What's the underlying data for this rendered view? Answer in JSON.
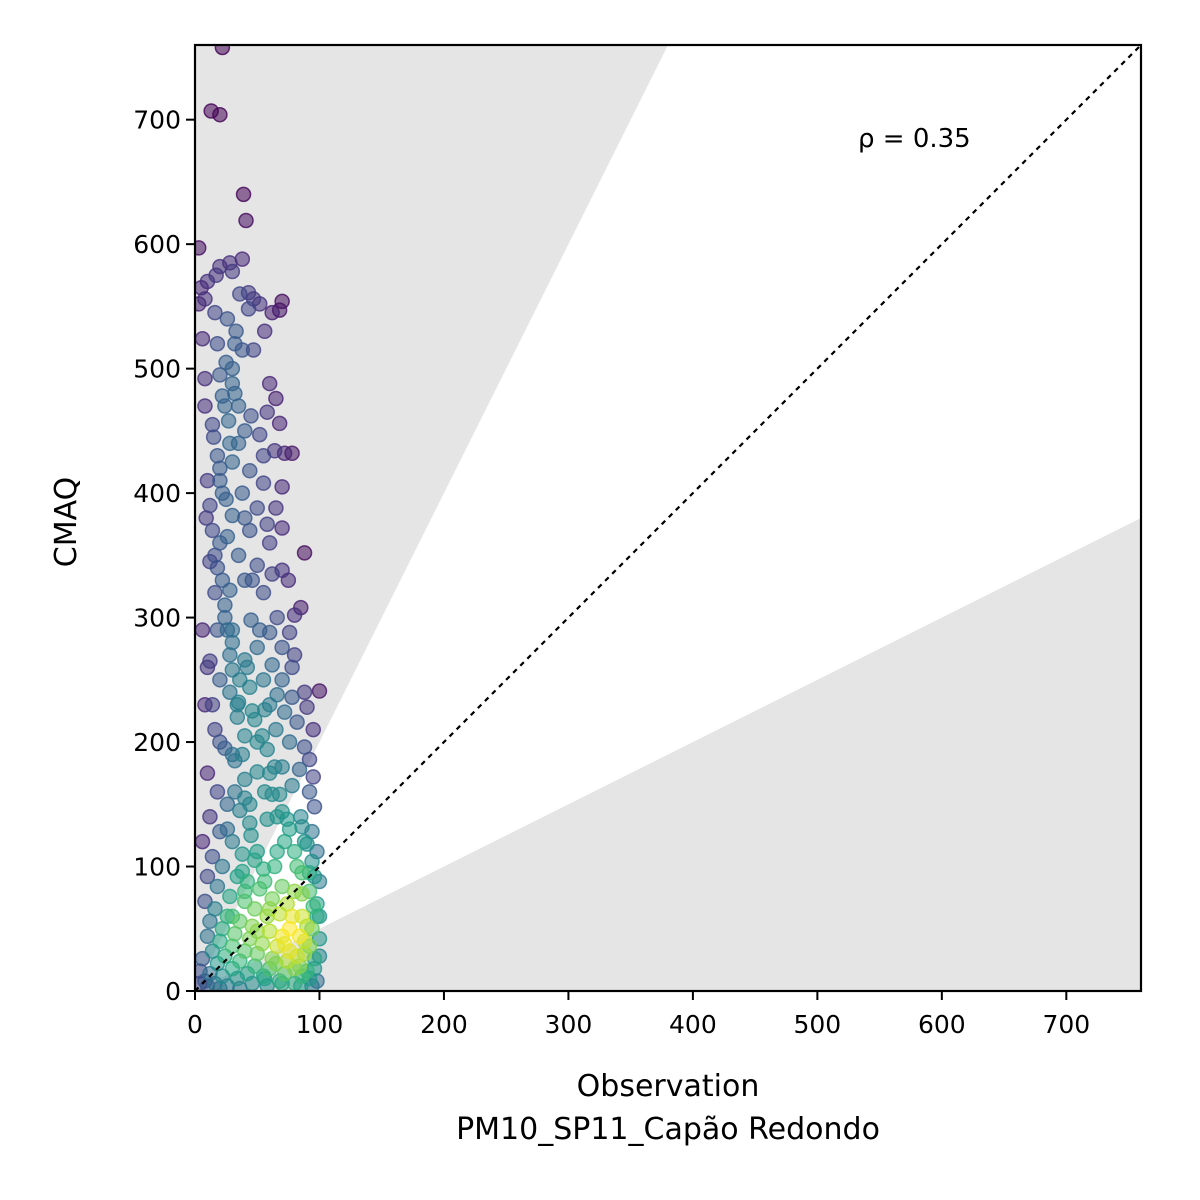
{
  "chart_data": {
    "type": "scatter",
    "title": "",
    "xlabel": "Observation",
    "xlabel_line2": "PM10_SP11_Capão Redondo",
    "ylabel": "CMAQ",
    "xlim": [
      0,
      760
    ],
    "ylim": [
      0,
      760
    ],
    "xticks": [
      0,
      100,
      200,
      300,
      400,
      500,
      600,
      700
    ],
    "yticks": [
      0,
      100,
      200,
      300,
      400,
      500,
      600,
      700
    ],
    "annotation": "ρ = 0.35",
    "identity_line": true,
    "shaded_region_slopes": {
      "upper": 2,
      "lower": 0.5
    },
    "shade_color": "#e5e5e5",
    "colormap": "viridis",
    "point_alpha": 0.55,
    "grid": false,
    "legend": "none",
    "points": [
      [
        22,
        758
      ],
      [
        13,
        707
      ],
      [
        20,
        704
      ],
      [
        39,
        640
      ],
      [
        41,
        619
      ],
      [
        3,
        597
      ],
      [
        38,
        588
      ],
      [
        28,
        585
      ],
      [
        20,
        582
      ],
      [
        17,
        575
      ],
      [
        10,
        570
      ],
      [
        30,
        578
      ],
      [
        5,
        565
      ],
      [
        8,
        556
      ],
      [
        43,
        561
      ],
      [
        47,
        556
      ],
      [
        70,
        554
      ],
      [
        68,
        547
      ],
      [
        62,
        545
      ],
      [
        52,
        552
      ],
      [
        3,
        552
      ],
      [
        16,
        545
      ],
      [
        43,
        548
      ],
      [
        33,
        530
      ],
      [
        56,
        530
      ],
      [
        32,
        520
      ],
      [
        6,
        524
      ],
      [
        38,
        515
      ],
      [
        47,
        515
      ],
      [
        25,
        505
      ],
      [
        20,
        495
      ],
      [
        30,
        488
      ],
      [
        8,
        492
      ],
      [
        60,
        488
      ],
      [
        65,
        476
      ],
      [
        35,
        470
      ],
      [
        22,
        478
      ],
      [
        45,
        462
      ],
      [
        58,
        465
      ],
      [
        68,
        456
      ],
      [
        27,
        458
      ],
      [
        40,
        450
      ],
      [
        52,
        447
      ],
      [
        15,
        445
      ],
      [
        35,
        440
      ],
      [
        55,
        430
      ],
      [
        64,
        434
      ],
      [
        72,
        432
      ],
      [
        78,
        432
      ],
      [
        30,
        425
      ],
      [
        44,
        418
      ],
      [
        20,
        420
      ],
      [
        10,
        410
      ],
      [
        55,
        408
      ],
      [
        70,
        405
      ],
      [
        38,
        400
      ],
      [
        25,
        395
      ],
      [
        50,
        388
      ],
      [
        65,
        388
      ],
      [
        30,
        382
      ],
      [
        58,
        375
      ],
      [
        44,
        370
      ],
      [
        70,
        372
      ],
      [
        60,
        360
      ],
      [
        20,
        360
      ],
      [
        35,
        350
      ],
      [
        88,
        352
      ],
      [
        50,
        342
      ],
      [
        70,
        338
      ],
      [
        62,
        335
      ],
      [
        40,
        330
      ],
      [
        75,
        330
      ],
      [
        28,
        322
      ],
      [
        55,
        320
      ],
      [
        85,
        308
      ],
      [
        80,
        302
      ],
      [
        66,
        300
      ],
      [
        45,
        298
      ],
      [
        30,
        290
      ],
      [
        60,
        288
      ],
      [
        76,
        288
      ],
      [
        50,
        276
      ],
      [
        70,
        276
      ],
      [
        80,
        270
      ],
      [
        40,
        266
      ],
      [
        62,
        262
      ],
      [
        78,
        260
      ],
      [
        30,
        258
      ],
      [
        55,
        250
      ],
      [
        70,
        250
      ],
      [
        44,
        244
      ],
      [
        88,
        240
      ],
      [
        100,
        241
      ],
      [
        66,
        238
      ],
      [
        78,
        236
      ],
      [
        35,
        232
      ],
      [
        56,
        226
      ],
      [
        90,
        228
      ],
      [
        72,
        224
      ],
      [
        48,
        218
      ],
      [
        82,
        216
      ],
      [
        95,
        210
      ],
      [
        65,
        210
      ],
      [
        40,
        205
      ],
      [
        76,
        200
      ],
      [
        88,
        196
      ],
      [
        58,
        194
      ],
      [
        92,
        186
      ],
      [
        30,
        190
      ],
      [
        70,
        180
      ],
      [
        84,
        178
      ],
      [
        95,
        172
      ],
      [
        50,
        176
      ],
      [
        78,
        165
      ],
      [
        92,
        160
      ],
      [
        62,
        158
      ],
      [
        40,
        155
      ],
      [
        96,
        148
      ],
      [
        70,
        144
      ],
      [
        85,
        140
      ],
      [
        58,
        138
      ],
      [
        94,
        128
      ],
      [
        76,
        130
      ],
      [
        88,
        120
      ],
      [
        45,
        125
      ],
      [
        98,
        112
      ],
      [
        66,
        112
      ],
      [
        82,
        100
      ],
      [
        92,
        95
      ],
      [
        55,
        98
      ],
      [
        100,
        88
      ],
      [
        70,
        84
      ],
      [
        86,
        78
      ],
      [
        40,
        80
      ],
      [
        95,
        68
      ],
      [
        60,
        66
      ],
      [
        78,
        60
      ],
      [
        90,
        52
      ],
      [
        100,
        42
      ],
      [
        50,
        48
      ],
      [
        72,
        38
      ],
      [
        88,
        30
      ],
      [
        65,
        22
      ],
      [
        100,
        28
      ],
      [
        80,
        18
      ],
      [
        92,
        10
      ],
      [
        55,
        12
      ],
      [
        85,
        4
      ],
      [
        70,
        6
      ],
      [
        8,
        470
      ],
      [
        14,
        455
      ],
      [
        18,
        430
      ],
      [
        22,
        400
      ],
      [
        9,
        380
      ],
      [
        26,
        365
      ],
      [
        12,
        345
      ],
      [
        16,
        320
      ],
      [
        24,
        300
      ],
      [
        30,
        280
      ],
      [
        6,
        290
      ],
      [
        12,
        265
      ],
      [
        20,
        250
      ],
      [
        28,
        240
      ],
      [
        34,
        220
      ],
      [
        8,
        230
      ],
      [
        16,
        210
      ],
      [
        24,
        195
      ],
      [
        32,
        185
      ],
      [
        40,
        170
      ],
      [
        10,
        175
      ],
      [
        18,
        160
      ],
      [
        26,
        150
      ],
      [
        36,
        145
      ],
      [
        44,
        135
      ],
      [
        12,
        140
      ],
      [
        20,
        128
      ],
      [
        30,
        120
      ],
      [
        38,
        110
      ],
      [
        48,
        105
      ],
      [
        6,
        120
      ],
      [
        14,
        108
      ],
      [
        22,
        100
      ],
      [
        34,
        92
      ],
      [
        42,
        88
      ],
      [
        52,
        82
      ],
      [
        10,
        92
      ],
      [
        18,
        84
      ],
      [
        28,
        76
      ],
      [
        40,
        72
      ],
      [
        48,
        66
      ],
      [
        58,
        60
      ],
      [
        8,
        72
      ],
      [
        16,
        66
      ],
      [
        26,
        60
      ],
      [
        36,
        56
      ],
      [
        46,
        52
      ],
      [
        60,
        48
      ],
      [
        70,
        44
      ],
      [
        12,
        56
      ],
      [
        22,
        50
      ],
      [
        32,
        46
      ],
      [
        44,
        42
      ],
      [
        54,
        38
      ],
      [
        66,
        36
      ],
      [
        76,
        32
      ],
      [
        10,
        44
      ],
      [
        20,
        40
      ],
      [
        30,
        36
      ],
      [
        40,
        32
      ],
      [
        50,
        30
      ],
      [
        62,
        26
      ],
      [
        74,
        24
      ],
      [
        84,
        20
      ],
      [
        96,
        18
      ],
      [
        14,
        32
      ],
      [
        24,
        28
      ],
      [
        36,
        24
      ],
      [
        48,
        20
      ],
      [
        60,
        18
      ],
      [
        72,
        14
      ],
      [
        86,
        12
      ],
      [
        98,
        8
      ],
      [
        6,
        26
      ],
      [
        18,
        22
      ],
      [
        30,
        18
      ],
      [
        42,
        14
      ],
      [
        56,
        10
      ],
      [
        68,
        8
      ],
      [
        80,
        6
      ],
      [
        94,
        4
      ],
      [
        4,
        16
      ],
      [
        12,
        14
      ],
      [
        22,
        12
      ],
      [
        34,
        10
      ],
      [
        46,
        6
      ],
      [
        58,
        4
      ],
      [
        8,
        8
      ],
      [
        16,
        6
      ],
      [
        26,
        4
      ],
      [
        36,
        2
      ],
      [
        4,
        6
      ],
      [
        10,
        4
      ],
      [
        20,
        2
      ],
      [
        30,
        60
      ],
      [
        38,
        96
      ],
      [
        26,
        130
      ],
      [
        32,
        160
      ],
      [
        20,
        200
      ],
      [
        14,
        230
      ],
      [
        10,
        260
      ],
      [
        18,
        290
      ],
      [
        22,
        330
      ],
      [
        14,
        370
      ],
      [
        20,
        410
      ],
      [
        28,
        440
      ],
      [
        24,
        470
      ],
      [
        30,
        500
      ],
      [
        18,
        520
      ],
      [
        26,
        540
      ],
      [
        36,
        560
      ],
      [
        32,
        480
      ],
      [
        40,
        380
      ],
      [
        46,
        330
      ],
      [
        52,
        290
      ],
      [
        42,
        260
      ],
      [
        60,
        230
      ],
      [
        50,
        200
      ],
      [
        64,
        180
      ],
      [
        56,
        160
      ],
      [
        66,
        140
      ],
      [
        72,
        120
      ],
      [
        64,
        100
      ],
      [
        80,
        80
      ],
      [
        74,
        70
      ],
      [
        86,
        60
      ],
      [
        84,
        44
      ],
      [
        92,
        36
      ],
      [
        96,
        26
      ],
      [
        90,
        16
      ],
      [
        82,
        28
      ],
      [
        76,
        50
      ],
      [
        68,
        62
      ],
      [
        62,
        74
      ],
      [
        56,
        88
      ],
      [
        50,
        112
      ],
      [
        44,
        150
      ],
      [
        38,
        190
      ],
      [
        34,
        230
      ],
      [
        28,
        270
      ],
      [
        24,
        310
      ],
      [
        16,
        350
      ],
      [
        12,
        390
      ],
      [
        18,
        340
      ],
      [
        26,
        290
      ],
      [
        36,
        250
      ],
      [
        46,
        225
      ],
      [
        54,
        205
      ],
      [
        60,
        175
      ],
      [
        68,
        158
      ],
      [
        74,
        138
      ],
      [
        80,
        112
      ],
      [
        86,
        95
      ],
      [
        92,
        80
      ],
      [
        98,
        60
      ],
      [
        94,
        50
      ],
      [
        88,
        40
      ],
      [
        100,
        60
      ],
      [
        98,
        70
      ],
      [
        96,
        92
      ],
      [
        94,
        104
      ],
      [
        90,
        118
      ],
      [
        86,
        132
      ]
    ]
  }
}
